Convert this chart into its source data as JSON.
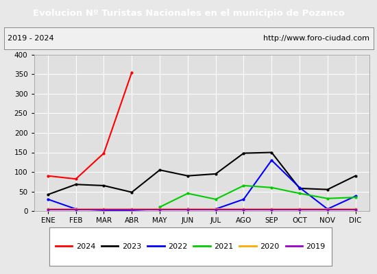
{
  "title": "Evolucion Nº Turistas Nacionales en el municipio de Pozanco",
  "subtitle_left": "2019 - 2024",
  "subtitle_right": "http://www.foro-ciudad.com",
  "title_bg_color": "#4472c4",
  "title_text_color": "#ffffff",
  "months": [
    "ENE",
    "FEB",
    "MAR",
    "ABR",
    "MAY",
    "JUN",
    "JUL",
    "AGO",
    "SEP",
    "OCT",
    "NOV",
    "DIC"
  ],
  "ylim": [
    0,
    400
  ],
  "yticks": [
    0,
    50,
    100,
    150,
    200,
    250,
    300,
    350,
    400
  ],
  "series": {
    "2024": {
      "color": "#ff0000",
      "values": [
        90,
        82,
        148,
        355,
        null,
        null,
        null,
        null,
        null,
        null,
        null,
        null
      ]
    },
    "2023": {
      "color": "#000000",
      "values": [
        42,
        68,
        65,
        48,
        105,
        90,
        95,
        148,
        150,
        58,
        55,
        90
      ]
    },
    "2022": {
      "color": "#0000ff",
      "values": [
        30,
        5,
        2,
        2,
        5,
        5,
        5,
        30,
        130,
        60,
        5,
        38
      ]
    },
    "2021": {
      "color": "#00cc00",
      "values": [
        null,
        null,
        null,
        null,
        10,
        45,
        30,
        65,
        60,
        45,
        32,
        35
      ]
    },
    "2020": {
      "color": "#ffaa00",
      "values": [
        5,
        5,
        5,
        5,
        5,
        5,
        5,
        5,
        5,
        5,
        5,
        5
      ]
    },
    "2019": {
      "color": "#9900cc",
      "values": [
        3,
        3,
        3,
        3,
        3,
        3,
        3,
        3,
        3,
        3,
        3,
        3
      ]
    }
  },
  "legend_order": [
    "2024",
    "2023",
    "2022",
    "2021",
    "2020",
    "2019"
  ],
  "plot_bg_color": "#e0e0e0",
  "grid_color": "#ffffff",
  "fig_bg_color": "#e8e8e8"
}
